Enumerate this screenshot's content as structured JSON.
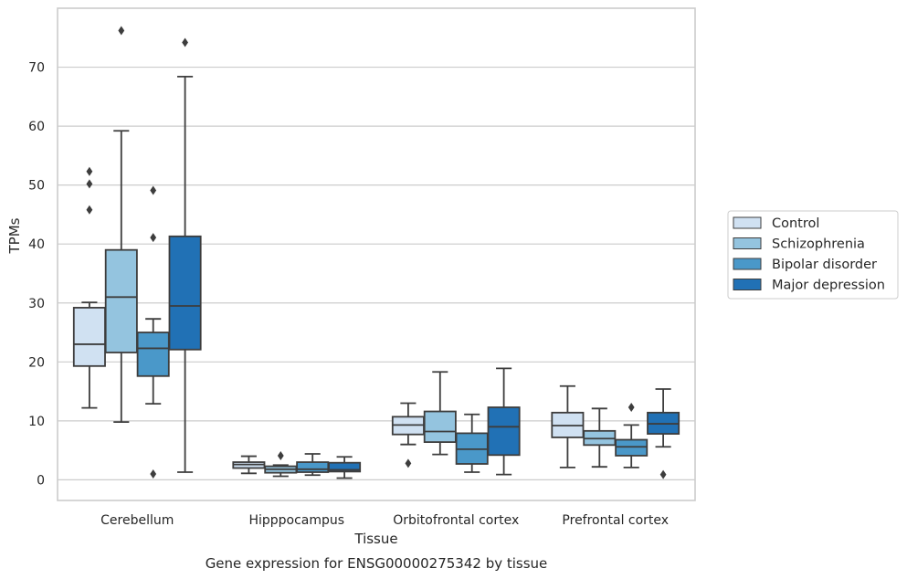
{
  "chart_data": {
    "type": "box",
    "caption": "Gene expression for ENSG00000275342 by tissue",
    "xlabel": "Tissue",
    "ylabel": "TPMs",
    "ylim": [
      -3.5,
      80
    ],
    "yticks": [
      0,
      10,
      20,
      30,
      40,
      50,
      60,
      70
    ],
    "grid": "horizontal",
    "legend_placement": "right",
    "categories": [
      "Cerebellum",
      "Hipppocampus",
      "Orbitofrontal cortex",
      "Prefrontal cortex"
    ],
    "series": [
      {
        "name": "Control",
        "color": "#d0e1f2",
        "boxes": [
          {
            "whislo": 12.2,
            "q1": 19.3,
            "med": 23.0,
            "q3": 29.2,
            "whishi": 30.1,
            "fliers": [
              45.8,
              50.2,
              52.3
            ]
          },
          {
            "whislo": 1.1,
            "q1": 2.0,
            "med": 2.6,
            "q3": 3.0,
            "whishi": 4.0,
            "fliers": []
          },
          {
            "whislo": 6.0,
            "q1": 7.7,
            "med": 9.3,
            "q3": 10.7,
            "whishi": 13.0,
            "fliers": [
              2.8
            ]
          },
          {
            "whislo": 2.1,
            "q1": 7.2,
            "med": 9.2,
            "q3": 11.4,
            "whishi": 15.9,
            "fliers": []
          }
        ]
      },
      {
        "name": "Schizophrenia",
        "color": "#94c4df",
        "boxes": [
          {
            "whislo": 9.8,
            "q1": 21.6,
            "med": 31.0,
            "q3": 39.0,
            "whishi": 59.2,
            "fliers": [
              76.2
            ]
          },
          {
            "whislo": 0.6,
            "q1": 1.2,
            "med": 1.8,
            "q3": 2.3,
            "whishi": 2.5,
            "fliers": [
              4.1
            ]
          },
          {
            "whislo": 4.3,
            "q1": 6.4,
            "med": 8.2,
            "q3": 11.6,
            "whishi": 18.3,
            "fliers": []
          },
          {
            "whislo": 2.2,
            "q1": 5.9,
            "med": 7.0,
            "q3": 8.3,
            "whishi": 12.1,
            "fliers": []
          }
        ]
      },
      {
        "name": "Bipolar disorder",
        "color": "#4a98c9",
        "boxes": [
          {
            "whislo": 12.9,
            "q1": 17.6,
            "med": 22.3,
            "q3": 25.0,
            "whishi": 27.3,
            "fliers": [
              1.0,
              41.1,
              49.1
            ]
          },
          {
            "whislo": 0.8,
            "q1": 1.3,
            "med": 1.8,
            "q3": 3.0,
            "whishi": 4.4,
            "fliers": []
          },
          {
            "whislo": 1.3,
            "q1": 2.7,
            "med": 5.2,
            "q3": 7.9,
            "whishi": 11.1,
            "fliers": []
          },
          {
            "whislo": 2.1,
            "q1": 4.1,
            "med": 5.6,
            "q3": 6.8,
            "whishi": 9.3,
            "fliers": [
              12.3
            ]
          }
        ]
      },
      {
        "name": "Major depression",
        "color": "#2171b5",
        "boxes": [
          {
            "whislo": 1.3,
            "q1": 22.1,
            "med": 29.5,
            "q3": 41.3,
            "whishi": 68.4,
            "fliers": [
              74.2
            ]
          },
          {
            "whislo": 0.3,
            "q1": 1.4,
            "med": 1.7,
            "q3": 2.9,
            "whishi": 3.9,
            "fliers": []
          },
          {
            "whislo": 0.9,
            "q1": 4.2,
            "med": 9.0,
            "q3": 12.3,
            "whishi": 18.9,
            "fliers": []
          },
          {
            "whislo": 5.6,
            "q1": 7.8,
            "med": 9.5,
            "q3": 11.4,
            "whishi": 15.4,
            "fliers": [
              0.9
            ]
          }
        ]
      }
    ]
  }
}
